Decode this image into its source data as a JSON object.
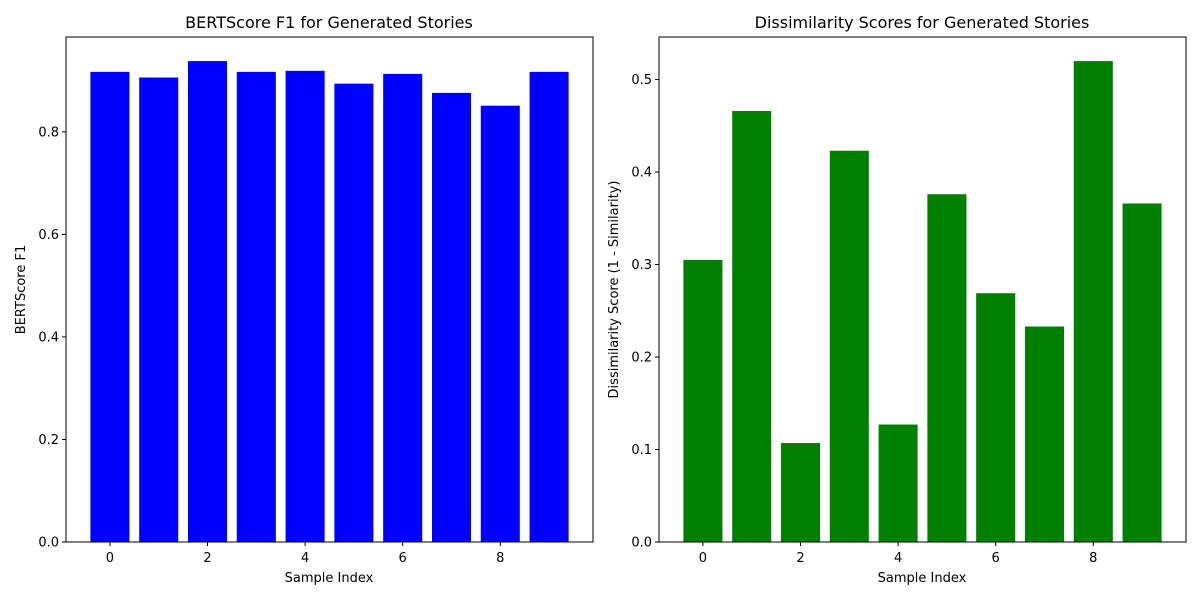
{
  "chart_data": [
    {
      "type": "bar",
      "title": "BERTScore F1 for Generated Stories",
      "xlabel": "Sample Index",
      "ylabel": "BERTScore F1",
      "categories": [
        0,
        1,
        2,
        3,
        4,
        5,
        6,
        7,
        8,
        9
      ],
      "values": [
        0.917,
        0.906,
        0.938,
        0.917,
        0.919,
        0.894,
        0.913,
        0.876,
        0.851,
        0.917
      ],
      "color": "#0000ff",
      "xlim": [
        -0.9,
        9.9
      ],
      "ylim": [
        0,
        0.985
      ],
      "xticks": [
        0,
        2,
        4,
        6,
        8
      ],
      "xtick_labels": [
        "0",
        "2",
        "4",
        "6",
        "8"
      ],
      "yticks": [
        0,
        0.2,
        0.4,
        0.6,
        0.8
      ],
      "ytick_labels": [
        "0.0",
        "0.2",
        "0.4",
        "0.6",
        "0.8"
      ],
      "grid": false
    },
    {
      "type": "bar",
      "title": "Dissimilarity Scores for Generated Stories",
      "xlabel": "Sample Index",
      "ylabel": "Dissimilarity Score (1 - Similarity)",
      "categories": [
        0,
        1,
        2,
        3,
        4,
        5,
        6,
        7,
        8,
        9
      ],
      "values": [
        0.305,
        0.466,
        0.107,
        0.423,
        0.127,
        0.376,
        0.269,
        0.233,
        0.52,
        0.366
      ],
      "color": "#008000",
      "xlim": [
        -0.9,
        9.9
      ],
      "ylim": [
        0,
        0.546
      ],
      "xticks": [
        0,
        2,
        4,
        6,
        8
      ],
      "xtick_labels": [
        "0",
        "2",
        "4",
        "6",
        "8"
      ],
      "yticks": [
        0,
        0.1,
        0.2,
        0.3,
        0.4,
        0.5
      ],
      "ytick_labels": [
        "0.0",
        "0.1",
        "0.2",
        "0.3",
        "0.4",
        "0.5"
      ],
      "grid": false
    }
  ]
}
